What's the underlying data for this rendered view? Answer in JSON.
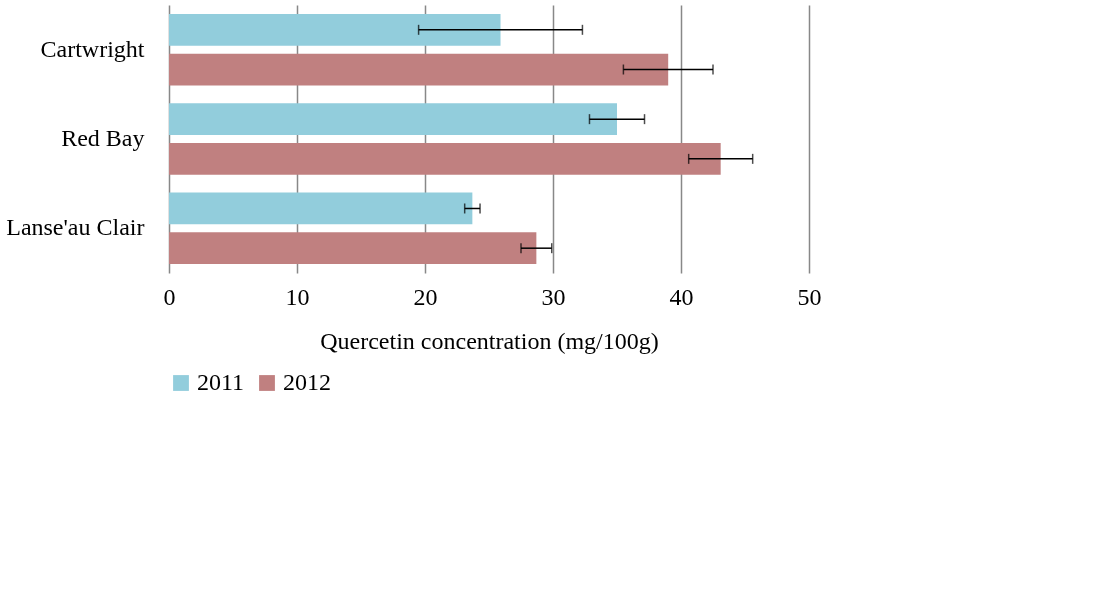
{
  "chart_data": {
    "type": "bar",
    "orientation": "horizontal",
    "xlabel": "Quercetin concentration (mg/100g)",
    "categories": [
      "Cartwright",
      "Red Bay",
      "Lanse'au Clair"
    ],
    "series": [
      {
        "name": "2011",
        "color": "#92cddc",
        "values": [
          25.9,
          35.0,
          23.7
        ],
        "errors": [
          6.4,
          2.15,
          0.6
        ]
      },
      {
        "name": "2012",
        "color": "#c08080",
        "values": [
          39.0,
          43.1,
          28.7
        ],
        "errors": [
          3.5,
          2.5,
          1.2
        ]
      }
    ],
    "xlim": [
      0,
      50
    ],
    "xticks": [
      0,
      10,
      20,
      30,
      40,
      50
    ],
    "grid": "x",
    "legend": "bottom"
  }
}
